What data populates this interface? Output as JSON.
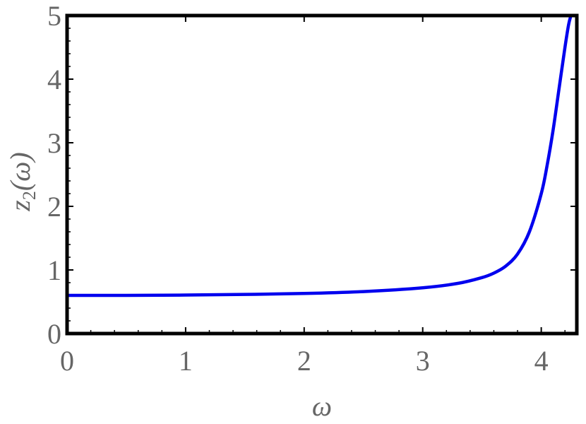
{
  "chart_data": {
    "type": "line",
    "xlabel": "ω",
    "ylabel": {
      "var": "z",
      "sub": "2",
      "arg": "(ω)"
    },
    "xlim": [
      0,
      4.3
    ],
    "ylim": [
      0,
      5
    ],
    "xticks": [
      0,
      1,
      2,
      3,
      4
    ],
    "yticks": [
      0,
      1,
      2,
      3,
      4,
      5
    ],
    "grid": false,
    "frame": true,
    "series": [
      {
        "color": "#0000ee",
        "x": [
          0,
          0.5,
          1.0,
          1.5,
          2.0,
          2.5,
          3.0,
          3.3,
          3.5,
          3.6,
          3.7,
          3.8,
          3.9,
          4.0,
          4.05,
          4.1,
          4.15,
          4.2,
          4.23,
          4.25
        ],
        "y": [
          0.6,
          0.6,
          0.605,
          0.615,
          0.63,
          0.66,
          0.72,
          0.79,
          0.88,
          0.95,
          1.06,
          1.25,
          1.6,
          2.2,
          2.65,
          3.2,
          3.85,
          4.5,
          4.85,
          5.0
        ]
      }
    ]
  }
}
